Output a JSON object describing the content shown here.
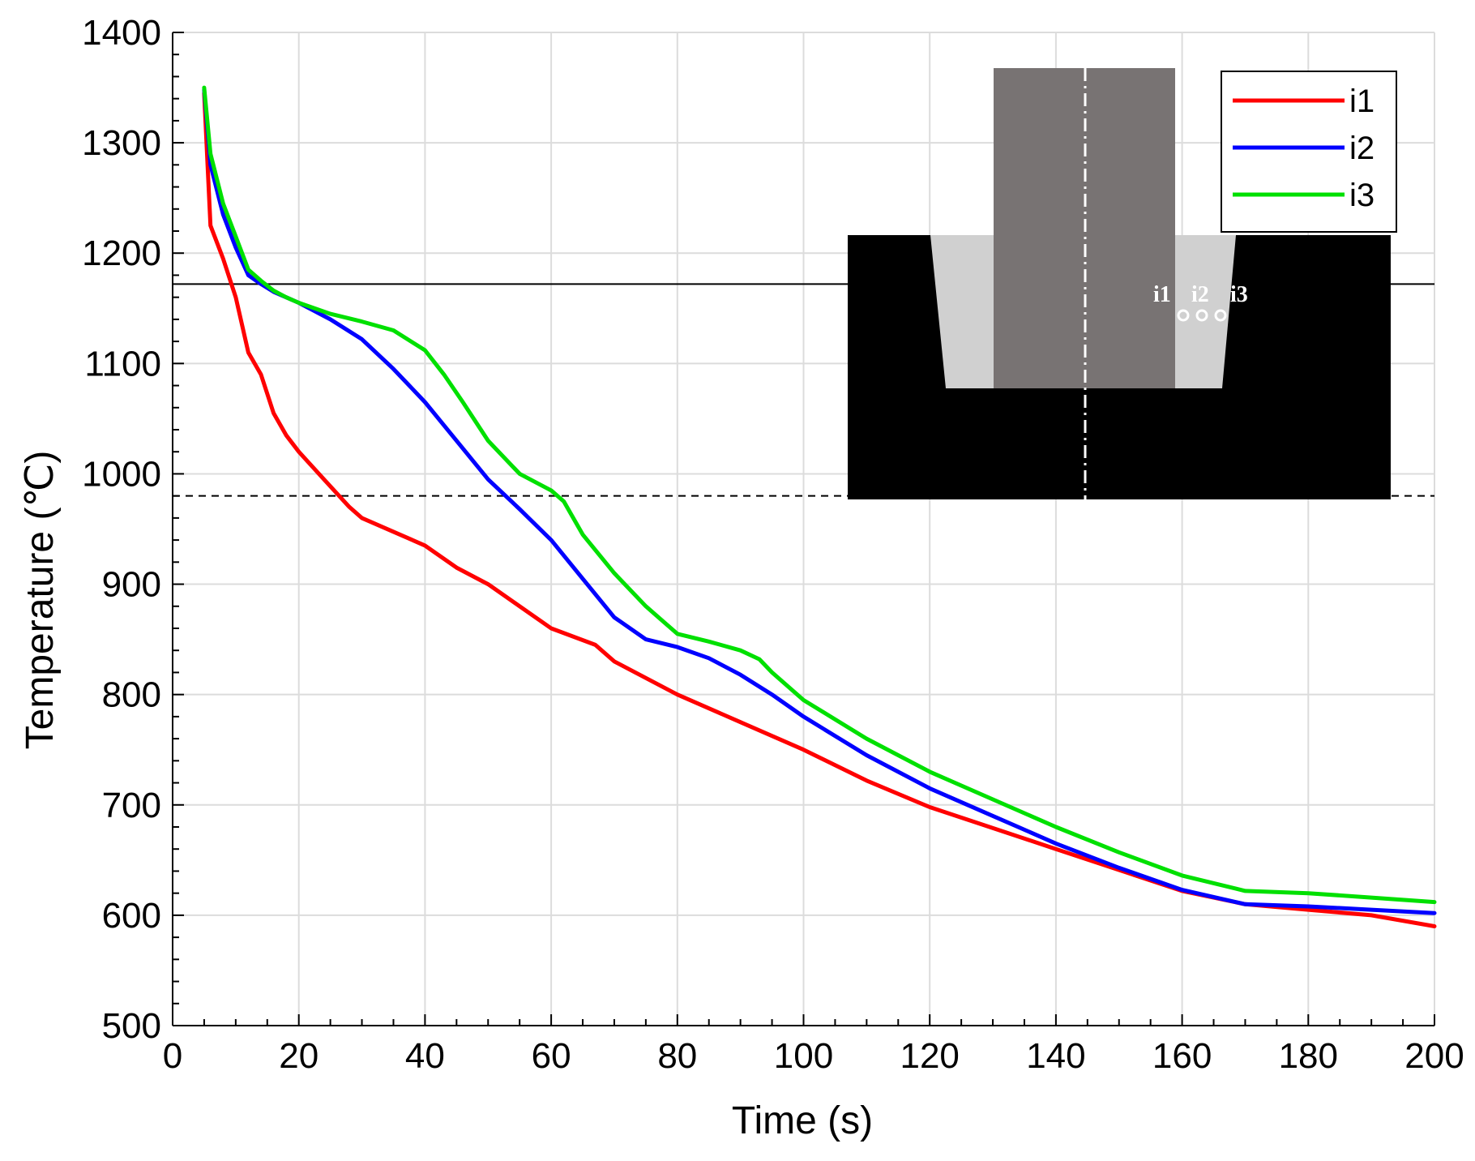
{
  "chart_data": {
    "type": "line",
    "title": "",
    "xlabel": "Time (s)",
    "ylabel": "Temperature (℃)",
    "xlim": [
      0,
      200
    ],
    "ylim": [
      500,
      1400
    ],
    "xticks": [
      0,
      20,
      40,
      60,
      80,
      100,
      120,
      140,
      160,
      180,
      200
    ],
    "yticks": [
      500,
      600,
      700,
      800,
      900,
      1000,
      1100,
      1200,
      1300,
      1400
    ],
    "grid": true,
    "legend_position": "top-right",
    "reference_lines": [
      {
        "style": "solid",
        "y": 1172
      },
      {
        "style": "dashed",
        "y": 980
      }
    ],
    "series": [
      {
        "name": "i1",
        "color": "#ff0000",
        "x": [
          5,
          6,
          8,
          10,
          12,
          14,
          16,
          18,
          20,
          24,
          28,
          30,
          36,
          40,
          45,
          50,
          55,
          60,
          67,
          70,
          80,
          90,
          100,
          110,
          120,
          140,
          160,
          170,
          180,
          190,
          200
        ],
        "y": [
          1345,
          1225,
          1195,
          1160,
          1110,
          1090,
          1055,
          1035,
          1020,
          995,
          970,
          960,
          945,
          935,
          915,
          900,
          880,
          860,
          845,
          830,
          800,
          775,
          750,
          722,
          698,
          660,
          622,
          610,
          605,
          600,
          590
        ]
      },
      {
        "name": "i2",
        "color": "#0000ff",
        "x": [
          5,
          6,
          8,
          10,
          12,
          14,
          16,
          18,
          20,
          25,
          30,
          35,
          40,
          45,
          50,
          55,
          60,
          65,
          70,
          75,
          80,
          85,
          90,
          95,
          100,
          110,
          120,
          130,
          140,
          150,
          160,
          170,
          180,
          190,
          200
        ],
        "y": [
          1348,
          1280,
          1235,
          1205,
          1180,
          1172,
          1165,
          1160,
          1155,
          1140,
          1122,
          1095,
          1065,
          1030,
          995,
          968,
          940,
          905,
          870,
          850,
          843,
          833,
          818,
          800,
          780,
          745,
          715,
          690,
          665,
          643,
          623,
          610,
          608,
          605,
          602
        ]
      },
      {
        "name": "i3",
        "color": "#00e000",
        "x": [
          5,
          6,
          8,
          10,
          12,
          14,
          16,
          18,
          20,
          25,
          30,
          35,
          40,
          43,
          46,
          50,
          55,
          60,
          62,
          65,
          70,
          75,
          80,
          85,
          90,
          93,
          95,
          100,
          110,
          120,
          130,
          140,
          150,
          160,
          170,
          180,
          190,
          200
        ],
        "y": [
          1350,
          1290,
          1245,
          1215,
          1185,
          1175,
          1166,
          1160,
          1155,
          1145,
          1138,
          1130,
          1112,
          1090,
          1065,
          1030,
          1000,
          985,
          975,
          945,
          910,
          880,
          855,
          848,
          840,
          832,
          820,
          795,
          760,
          730,
          705,
          680,
          657,
          636,
          622,
          620,
          616,
          612
        ]
      }
    ]
  }
}
